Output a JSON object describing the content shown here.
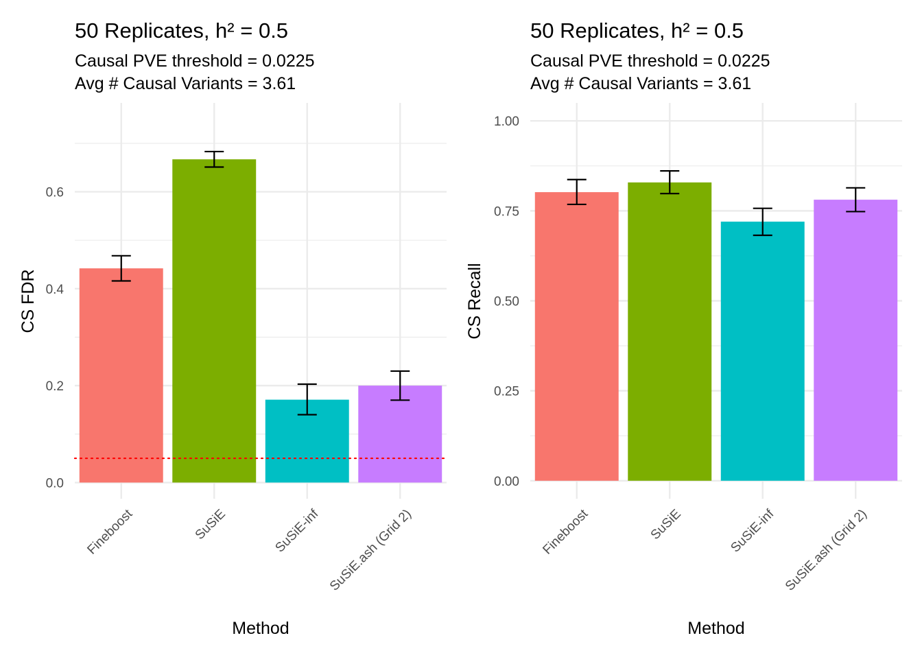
{
  "chart_data": [
    {
      "type": "bar",
      "title": "50 Replicates, h² = 0.5",
      "subtitle_lines": [
        "Causal PVE threshold = 0.0225",
        "Avg # Causal Variants = 3.61"
      ],
      "xlabel": "Method",
      "ylabel": "CS FDR",
      "categories": [
        "Fineboost",
        "SuSiE",
        "SuSiE-inf",
        "SuSiE.ash (Grid 2)"
      ],
      "values": [
        0.442,
        0.667,
        0.171,
        0.2
      ],
      "error_low": [
        0.416,
        0.651,
        0.14,
        0.17
      ],
      "error_high": [
        0.468,
        0.683,
        0.203,
        0.23
      ],
      "yticks": [
        0.0,
        0.2,
        0.4,
        0.6
      ],
      "ytick_labels": [
        "0.0",
        "0.2",
        "0.4",
        "0.6"
      ],
      "ylim": [
        -0.0334,
        0.7834
      ],
      "reference_line": {
        "value": 0.05,
        "color": "#ff0000",
        "style": "dotted"
      },
      "colors": [
        "#F8766D",
        "#7CAE00",
        "#00BFC4",
        "#C77CFF"
      ],
      "grid": true
    },
    {
      "type": "bar",
      "title": "50 Replicates, h² = 0.5",
      "subtitle_lines": [
        "Causal PVE threshold = 0.0225",
        "Avg # Causal Variants = 3.61"
      ],
      "xlabel": "Method",
      "ylabel": "CS Recall",
      "categories": [
        "Fineboost",
        "SuSiE",
        "SuSiE-inf",
        "SuSiE.ash (Grid 2)"
      ],
      "values": [
        0.802,
        0.829,
        0.72,
        0.781
      ],
      "error_low": [
        0.768,
        0.798,
        0.682,
        0.748
      ],
      "error_high": [
        0.837,
        0.861,
        0.757,
        0.814
      ],
      "yticks": [
        0.0,
        0.25,
        0.5,
        0.75,
        1.0
      ],
      "ytick_labels": [
        "0.00",
        "0.25",
        "0.50",
        "0.75",
        "1.00"
      ],
      "ylim": [
        -0.05,
        1.05
      ],
      "colors": [
        "#F8766D",
        "#7CAE00",
        "#00BFC4",
        "#C77CFF"
      ],
      "grid": true
    }
  ]
}
